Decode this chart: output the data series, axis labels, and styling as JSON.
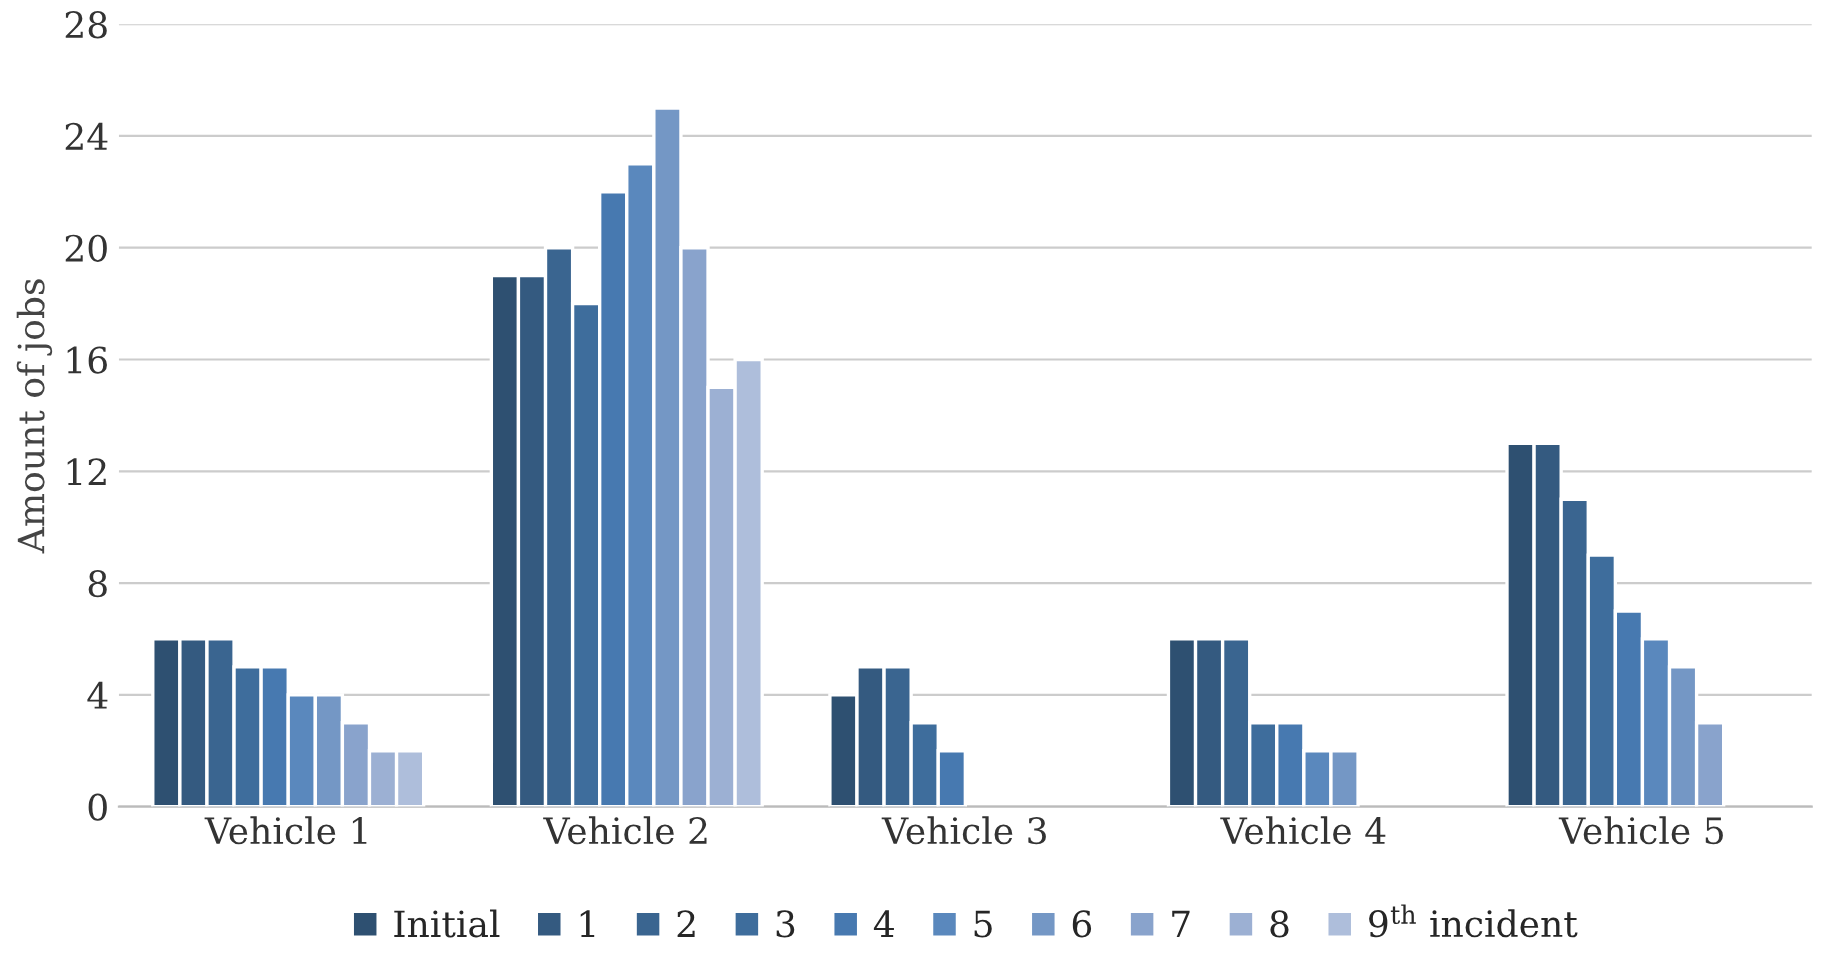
{
  "chart_data": {
    "type": "bar",
    "ylabel": "Amount of jobs",
    "categories": [
      "Vehicle 1",
      "Vehicle 2",
      "Vehicle 3",
      "Vehicle 4",
      "Vehicle 5"
    ],
    "ylim": [
      0,
      28
    ],
    "yticks": [
      0,
      4,
      8,
      12,
      16,
      20,
      24,
      28
    ],
    "grid": "y",
    "legend": "bottom",
    "series": [
      {
        "name": "Initial",
        "color": "#2e5071",
        "values": [
          6,
          19,
          4,
          6,
          13
        ]
      },
      {
        "name": "1",
        "color": "#345a80",
        "values": [
          6,
          19,
          5,
          6,
          13
        ]
      },
      {
        "name": "2",
        "color": "#3a6590",
        "values": [
          6,
          20,
          5,
          6,
          11
        ]
      },
      {
        "name": "3",
        "color": "#3e6d9c",
        "values": [
          5,
          18,
          3,
          3,
          9
        ]
      },
      {
        "name": "4",
        "color": "#4779b0",
        "values": [
          5,
          22,
          2,
          3,
          7
        ]
      },
      {
        "name": "5",
        "color": "#5a88bd",
        "values": [
          4,
          23,
          null,
          2,
          6
        ]
      },
      {
        "name": "6",
        "color": "#7497c5",
        "values": [
          4,
          25,
          null,
          2,
          5
        ]
      },
      {
        "name": "7",
        "color": "#89a3cc",
        "values": [
          3,
          20,
          null,
          null,
          3
        ]
      },
      {
        "name": "8",
        "color": "#9cb0d3",
        "values": [
          2,
          15,
          null,
          null,
          null
        ]
      },
      {
        "name": "9$^{th}$ incident",
        "color": "#aebedb",
        "values": [
          2,
          16,
          null,
          null,
          null
        ]
      }
    ]
  }
}
